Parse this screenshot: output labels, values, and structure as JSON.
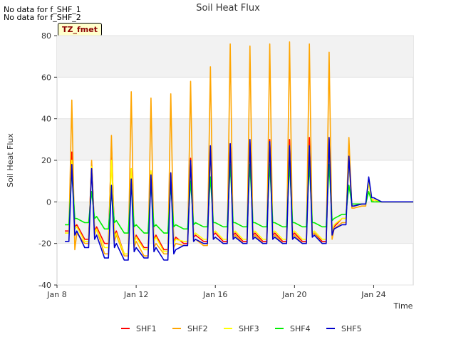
{
  "notes": [
    "No data for f_SHF_1",
    "No data for f_SHF_2"
  ],
  "badge": "TZ_fmet",
  "chart_data": {
    "type": "line",
    "title": "Soil Heat Flux",
    "xlabel": "Time",
    "ylabel": "Soil Heat Flux",
    "xlim": [
      8,
      26.0
    ],
    "ylim": [
      -40,
      80
    ],
    "yticks": [
      -40,
      -20,
      0,
      20,
      40,
      60,
      80
    ],
    "xticks": [
      8,
      12,
      16,
      20,
      24
    ],
    "xtick_labels": [
      "Jan 8",
      "Jan 12",
      "Jan 16",
      "Jan 20",
      "Jan 24"
    ],
    "x": [
      8.4,
      8.6,
      8.75,
      8.9,
      9.0,
      9.4,
      9.6,
      9.75,
      9.9,
      10.0,
      10.4,
      10.6,
      10.75,
      10.9,
      11.0,
      11.4,
      11.6,
      11.75,
      11.9,
      12.0,
      12.4,
      12.6,
      12.75,
      12.9,
      13.0,
      13.4,
      13.6,
      13.75,
      13.9,
      14.0,
      14.4,
      14.6,
      14.75,
      14.9,
      15.0,
      15.4,
      15.6,
      15.75,
      15.9,
      16.0,
      16.4,
      16.6,
      16.75,
      16.9,
      17.0,
      17.4,
      17.6,
      17.75,
      17.9,
      18.0,
      18.4,
      18.6,
      18.75,
      18.9,
      19.0,
      19.4,
      19.6,
      19.75,
      19.9,
      20.0,
      20.4,
      20.6,
      20.75,
      20.9,
      21.0,
      21.4,
      21.6,
      21.75,
      21.9,
      22.0,
      22.4,
      22.6,
      22.75,
      22.9,
      23.0,
      23.4,
      23.6,
      23.75,
      23.9,
      24.0,
      24.4,
      24.6,
      24.75,
      24.9,
      25.0,
      25.4,
      25.6,
      25.75,
      25.9,
      26.0
    ],
    "series": [
      {
        "name": "SHF1",
        "color": "#ff0000",
        "values": [
          -14,
          -14,
          24,
          -12,
          -11,
          -18,
          -18,
          19,
          -14,
          -12,
          -20,
          -20,
          28,
          -16,
          -14,
          -25,
          -25,
          16,
          -20,
          -16,
          -22,
          -22,
          14,
          -18,
          -16,
          -23,
          -23,
          14,
          -19,
          -17,
          -20,
          -20,
          21,
          -17,
          -16,
          -19,
          -19,
          25,
          -16,
          -15,
          -19,
          -19,
          28,
          -16,
          -15,
          -19,
          -19,
          29,
          -16,
          -15,
          -19,
          -19,
          30,
          -16,
          -15,
          -19,
          -19,
          30,
          -16,
          -15,
          -19,
          -19,
          31,
          -16,
          -15,
          -19,
          -19,
          30,
          -15,
          -12,
          -8,
          -8,
          20,
          -2,
          -2,
          -1,
          -1,
          10,
          1,
          1,
          0,
          0,
          0,
          0,
          0,
          0,
          0,
          0,
          0,
          0
        ]
      },
      {
        "name": "SHF2",
        "color": "#ffa500",
        "values": [
          -15,
          -15,
          49,
          -23,
          -15,
          -20,
          -20,
          20,
          -16,
          -13,
          -25,
          -25,
          32,
          -19,
          -16,
          -26,
          -26,
          53,
          -22,
          -19,
          -26,
          -26,
          50,
          -22,
          -20,
          -25,
          -25,
          52,
          -22,
          -20,
          -21,
          -21,
          58,
          -19,
          -18,
          -21,
          -21,
          65,
          -18,
          -17,
          -20,
          -20,
          76,
          -17,
          -16,
          -20,
          -20,
          75,
          -17,
          -16,
          -20,
          -20,
          76,
          -17,
          -16,
          -20,
          -20,
          77,
          -17,
          -16,
          -20,
          -20,
          76,
          -16,
          -15,
          -20,
          -20,
          72,
          -18,
          -13,
          -10,
          -10,
          31,
          -3,
          -3,
          -2,
          -2,
          11,
          1,
          0,
          0,
          0,
          0,
          0,
          0,
          0,
          0,
          0,
          0,
          0
        ]
      },
      {
        "name": "SHF3",
        "color": "#ffff00",
        "values": [
          -15,
          -15,
          20,
          -13,
          -12,
          -19,
          -19,
          17,
          -15,
          -13,
          -22,
          -22,
          20,
          -17,
          -15,
          -25,
          -25,
          16,
          -20,
          -17,
          -23,
          -23,
          15,
          -19,
          -17,
          -24,
          -24,
          14,
          -20,
          -18,
          -19,
          -19,
          19,
          -16,
          -15,
          -18,
          -18,
          24,
          -15,
          -14,
          -18,
          -18,
          25,
          -15,
          -14,
          -18,
          -18,
          27,
          -15,
          -14,
          -18,
          -18,
          27,
          -15,
          -14,
          -18,
          -18,
          27,
          -15,
          -14,
          -18,
          -18,
          27,
          -15,
          -14,
          -18,
          -18,
          27,
          -14,
          -11,
          -8,
          -8,
          19,
          -2,
          -2,
          -1,
          -1,
          9,
          1,
          1,
          0,
          0,
          0,
          0,
          0,
          0,
          0,
          0,
          0,
          0
        ]
      },
      {
        "name": "SHF4",
        "color": "#00ee00",
        "values": [
          -11,
          -11,
          15,
          -8,
          -8,
          -10,
          -10,
          5,
          -8,
          -7,
          -13,
          -13,
          5,
          -10,
          -9,
          -15,
          -15,
          9,
          -12,
          -11,
          -15,
          -15,
          9,
          -12,
          -11,
          -15,
          -15,
          8,
          -12,
          -11,
          -13,
          -13,
          10,
          -11,
          -10,
          -12,
          -12,
          12,
          -10,
          -10,
          -12,
          -12,
          18,
          -10,
          -10,
          -12,
          -12,
          18,
          -10,
          -10,
          -12,
          -12,
          18,
          -10,
          -10,
          -12,
          -12,
          18,
          -10,
          -10,
          -12,
          -12,
          18,
          -10,
          -10,
          -12,
          -12,
          18,
          -9,
          -8,
          -6,
          -6,
          8,
          -1,
          -1,
          -1,
          -1,
          5,
          0,
          0,
          0,
          0,
          0,
          0,
          0,
          0,
          0,
          0,
          0,
          0
        ]
      },
      {
        "name": "SHF5",
        "color": "#0000cc",
        "values": [
          -19,
          -19,
          18,
          -16,
          -14,
          -22,
          -22,
          16,
          -18,
          -16,
          -27,
          -27,
          8,
          -22,
          -20,
          -28,
          -28,
          11,
          -24,
          -22,
          -27,
          -27,
          13,
          -24,
          -22,
          -28,
          -28,
          14,
          -25,
          -23,
          -21,
          -21,
          20,
          -19,
          -18,
          -20,
          -20,
          27,
          -18,
          -17,
          -20,
          -20,
          28,
          -18,
          -17,
          -20,
          -20,
          30,
          -18,
          -17,
          -20,
          -20,
          29,
          -18,
          -17,
          -20,
          -20,
          27,
          -18,
          -17,
          -20,
          -20,
          27,
          -17,
          -16,
          -20,
          -20,
          31,
          -16,
          -13,
          -11,
          -11,
          22,
          -2,
          -2,
          -1,
          -1,
          12,
          2,
          2,
          0,
          0,
          0,
          0,
          0,
          0,
          0,
          0,
          0,
          0
        ]
      }
    ],
    "legend": [
      "SHF1",
      "SHF2",
      "SHF3",
      "SHF4",
      "SHF5"
    ],
    "legend_position": "bottom"
  }
}
